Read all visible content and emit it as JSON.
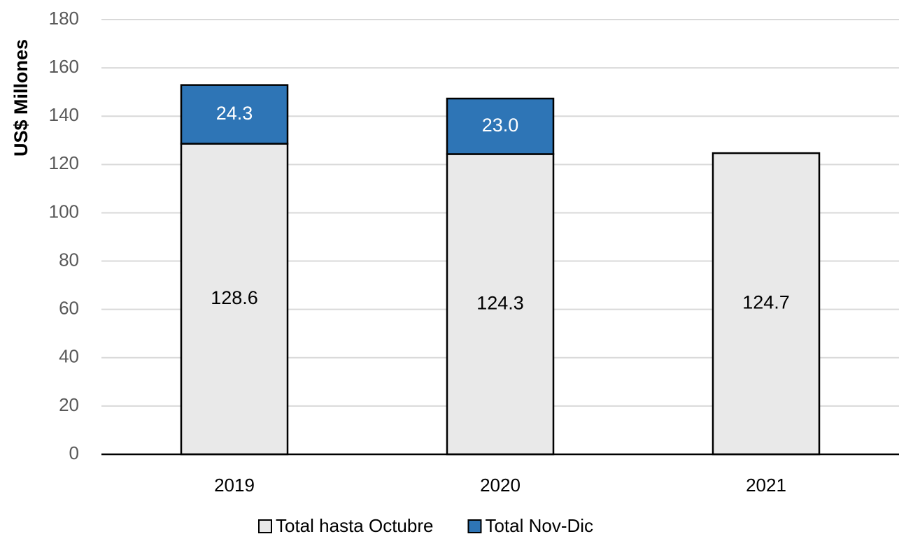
{
  "chart_data": {
    "type": "stacked-bar",
    "y_label": "US$ Millones",
    "categories": [
      "2019",
      "2020",
      "2021"
    ],
    "series": [
      {
        "name": "Total hasta Octubre",
        "color": "#e9e9e9",
        "values": [
          128.6,
          124.3,
          124.7
        ]
      },
      {
        "name": "Total Nov-Dic",
        "color": "#2e75b6",
        "values": [
          24.3,
          23,
          null
        ],
        "value_labels": [
          "24.3",
          "23.0",
          null
        ]
      }
    ],
    "ylim": [
      0,
      180
    ],
    "yticks": [
      0,
      20,
      40,
      60,
      80,
      100,
      120,
      140,
      160,
      180
    ],
    "grid": true,
    "legend": "bottom"
  }
}
